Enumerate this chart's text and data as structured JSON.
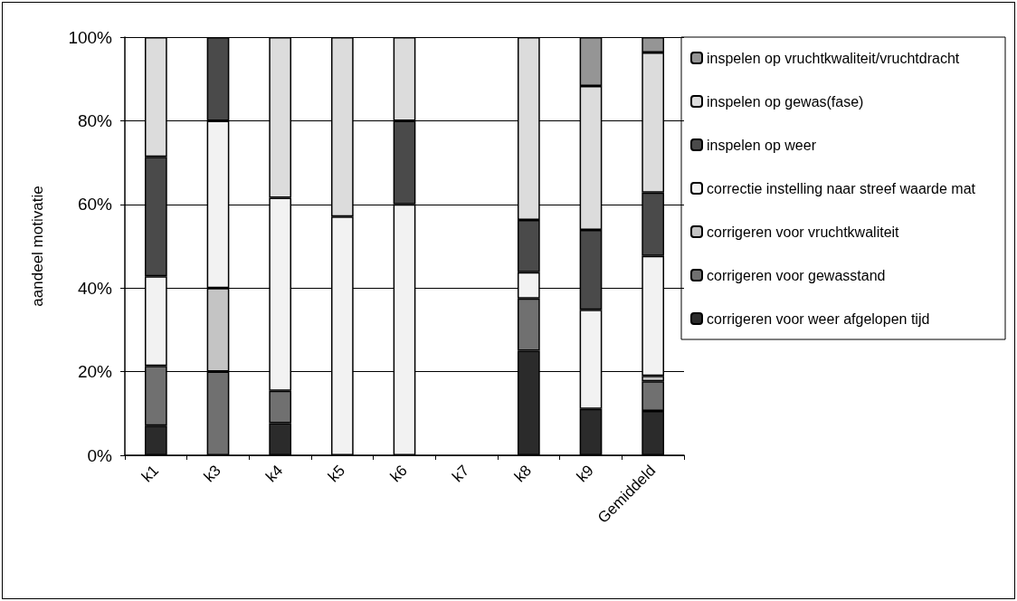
{
  "chart_data": {
    "type": "bar",
    "stacked": true,
    "ylabel": "aandeel motivatie",
    "categories": [
      "k1",
      "k3",
      "k4",
      "k5",
      "k6",
      "k7",
      "k8",
      "k9",
      "Gemiddeld"
    ],
    "series": [
      {
        "name": "corrigeren voor weer afgelopen tijd",
        "color": "#2b2b2b",
        "values": [
          7.1,
          0,
          7.7,
          0,
          0,
          0,
          25,
          11.1,
          10.6
        ]
      },
      {
        "name": "corrigeren voor gewasstand",
        "color": "#707070",
        "values": [
          14.3,
          20,
          7.7,
          0,
          0,
          0,
          12.5,
          0,
          7.1
        ]
      },
      {
        "name": "corrigeren voor vruchtkwaliteit",
        "color": "#c4c4c4",
        "values": [
          0,
          20,
          0,
          0,
          0,
          0,
          0,
          0,
          1.3
        ]
      },
      {
        "name": "correctie instelling naar streef waarde mat",
        "color": "#f2f2f2",
        "values": [
          21.4,
          40,
          46.2,
          57.1,
          60,
          0,
          6.3,
          23.7,
          28.7
        ]
      },
      {
        "name": "inspelen op weer",
        "color": "#4a4a4a",
        "values": [
          28.6,
          20,
          0,
          0,
          20,
          0,
          12.5,
          19.1,
          15.1
        ]
      },
      {
        "name": "inspelen op gewas(fase)",
        "color": "#dcdcdc",
        "values": [
          28.6,
          0,
          38.4,
          42.9,
          20,
          0,
          43.7,
          34.4,
          33.5
        ]
      },
      {
        "name": "inspelen op vruchtkwaliteit/vruchtdracht",
        "color": "#959595",
        "values": [
          0,
          0,
          0,
          0,
          0,
          0,
          0,
          11.7,
          3.7
        ]
      }
    ],
    "ylim": [
      0,
      100
    ],
    "yticks": [
      {
        "value": 0,
        "label": "0%"
      },
      {
        "value": 20,
        "label": "20%"
      },
      {
        "value": 40,
        "label": "40%"
      },
      {
        "value": 60,
        "label": "60%"
      },
      {
        "value": 80,
        "label": "80%"
      },
      {
        "value": 100,
        "label": "100%"
      }
    ],
    "grid": "y",
    "legend": "right"
  }
}
